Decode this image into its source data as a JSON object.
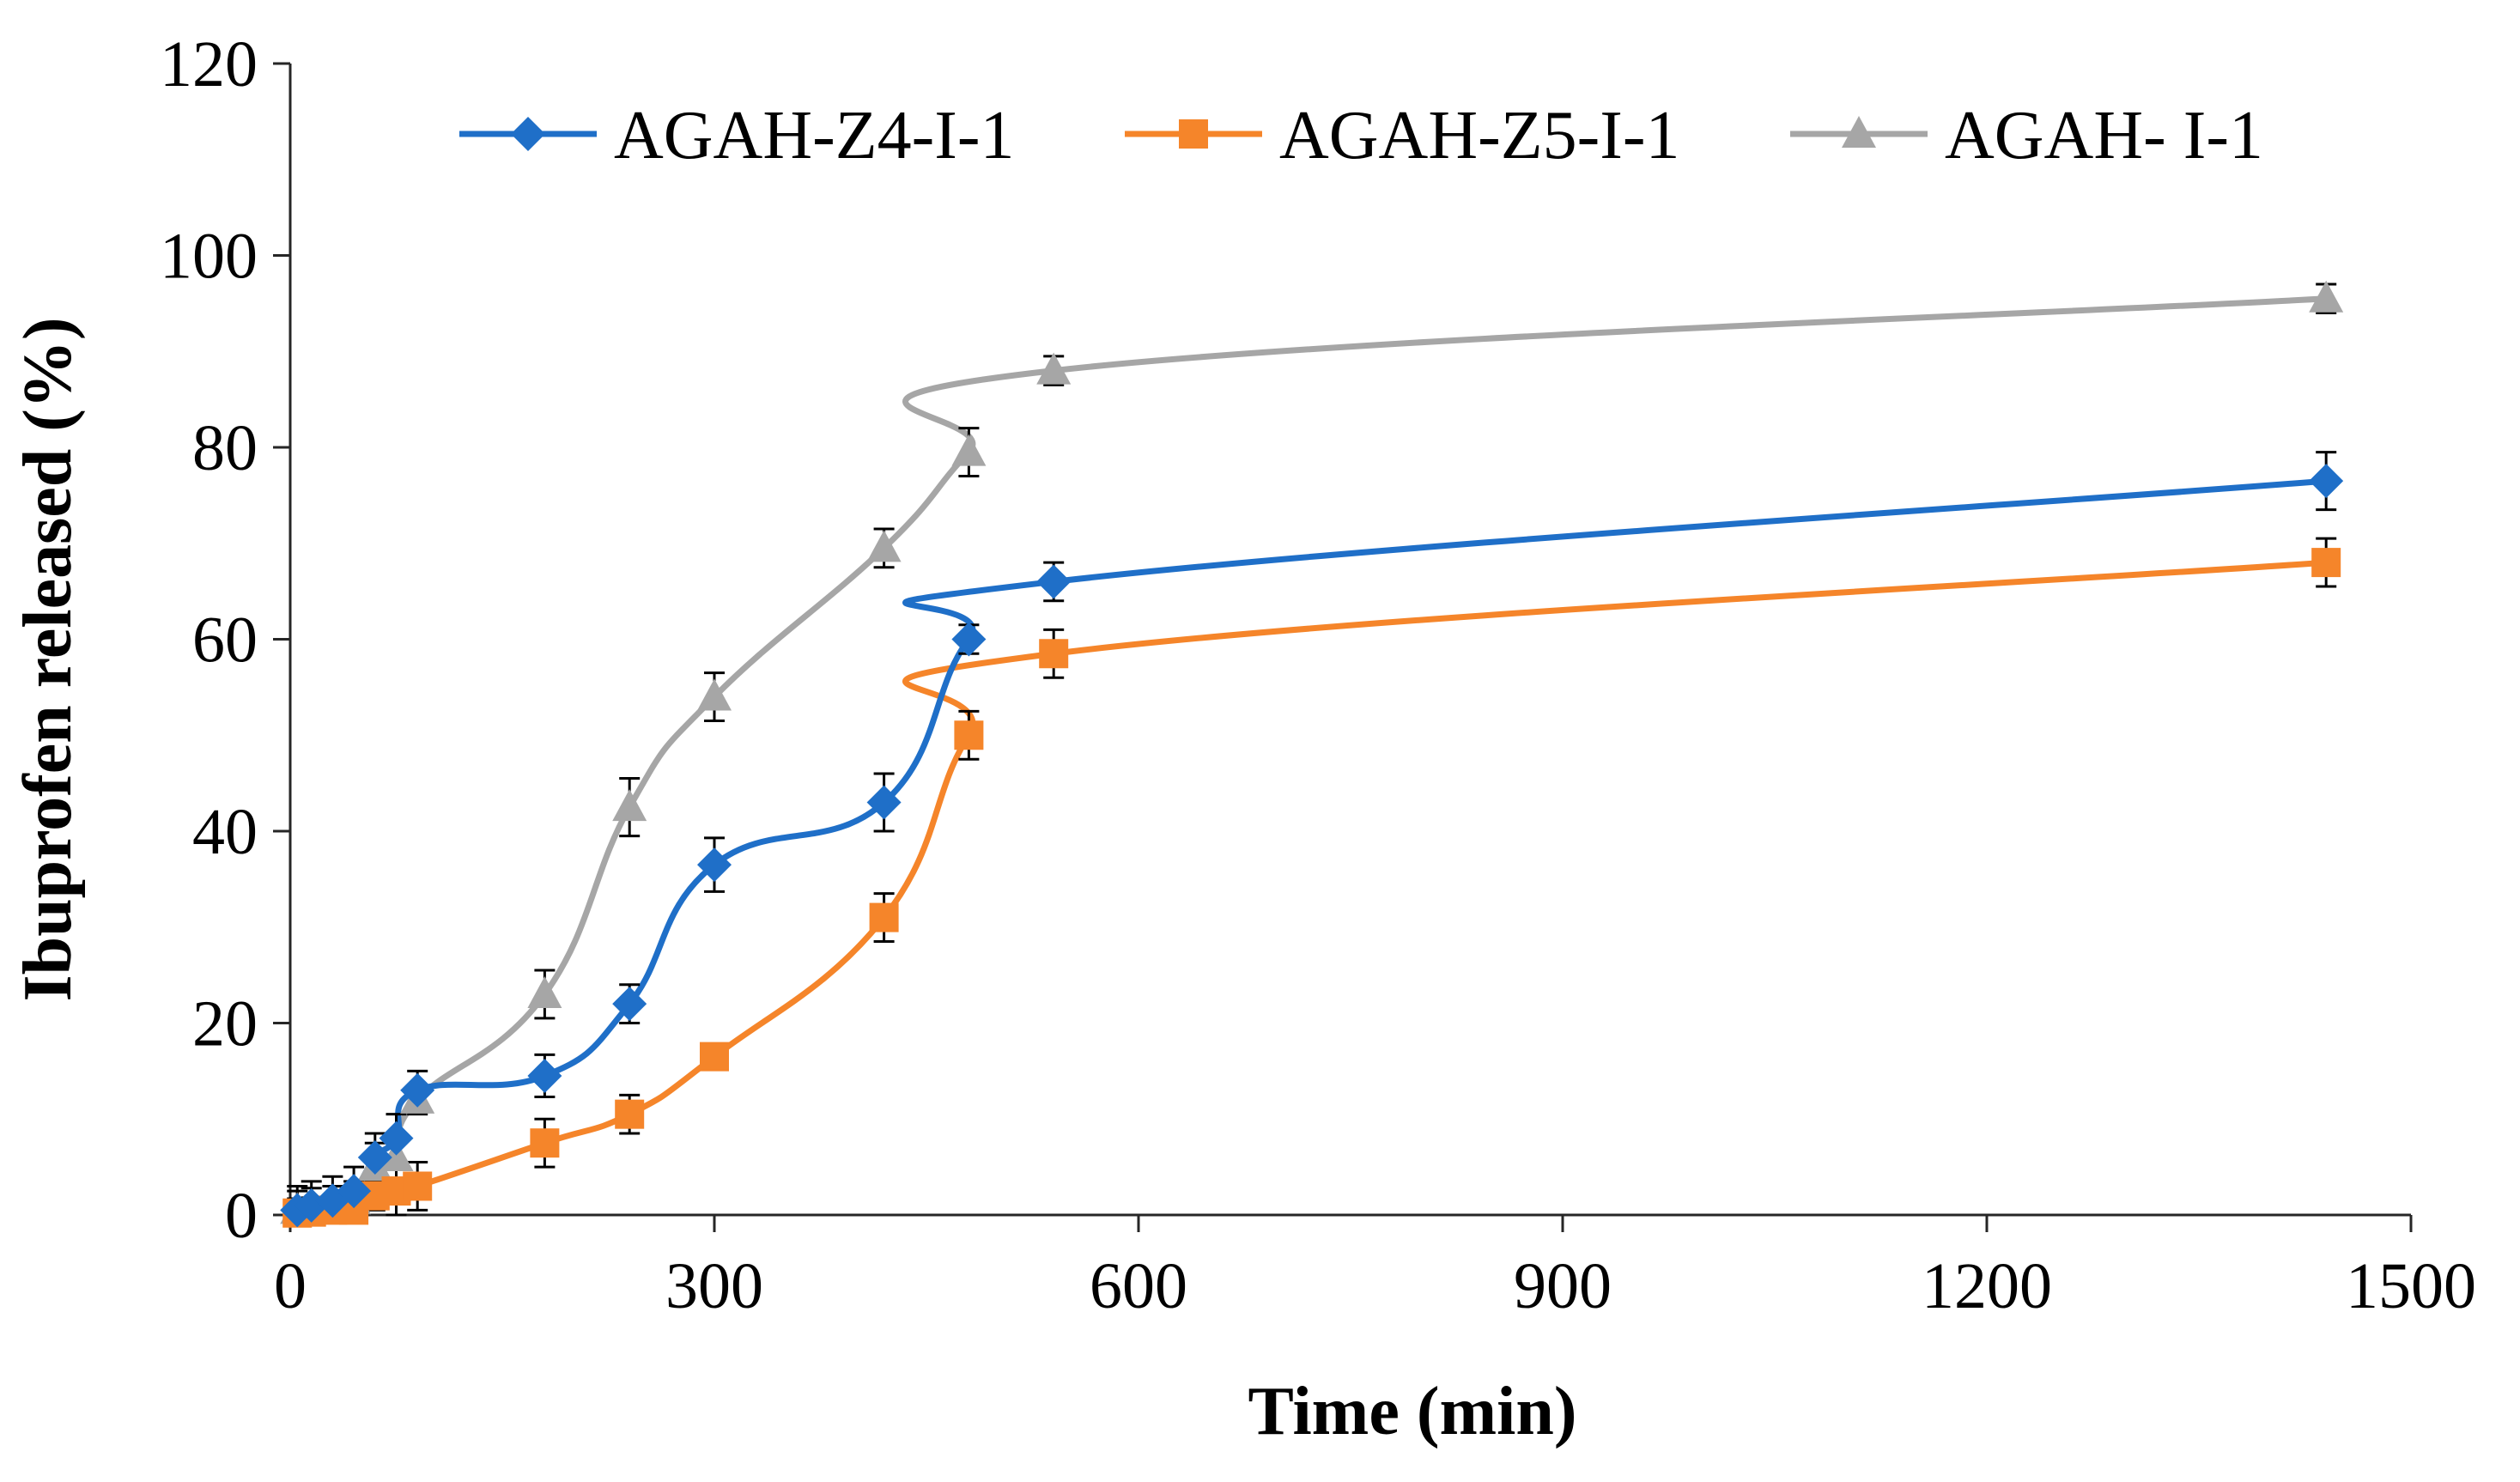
{
  "chart_data": {
    "type": "line",
    "title": "",
    "xlabel": "Time (min)",
    "ylabel": "Ibuprofen released (%)",
    "xlim": [
      0,
      1500
    ],
    "ylim": [
      0,
      120
    ],
    "xticks": [
      0,
      300,
      600,
      900,
      1200,
      1500
    ],
    "yticks": [
      0,
      20,
      40,
      60,
      80,
      100,
      120
    ],
    "xtick_labels": [
      "0",
      "300",
      "600",
      "900",
      "1200",
      "1500"
    ],
    "ytick_labels": [
      "0",
      "20",
      "40",
      "60",
      "80",
      "100",
      "120"
    ],
    "grid": false,
    "legend_position": "top",
    "smooth": true,
    "series": [
      {
        "name": "AGAH-Z4-I-1",
        "color": "#1F6FC8",
        "marker": "diamond",
        "x": [
          5,
          15,
          30,
          45,
          60,
          75,
          90,
          180,
          240,
          300,
          420,
          480,
          540,
          1440
        ],
        "y": [
          0.5,
          1.0,
          1.5,
          2.5,
          6.0,
          8.0,
          13.0,
          14.5,
          22.0,
          36.5,
          43.0,
          60.0,
          66.0,
          76.5
        ],
        "error": [
          2.5,
          2.5,
          2.5,
          2.5,
          2.5,
          2.5,
          2.0,
          2.2,
          2.0,
          2.8,
          3.0,
          1.5,
          2.0,
          3.0
        ]
      },
      {
        "name": "AGAH-Z5-I-1",
        "color": "#F5852A",
        "marker": "square",
        "x": [
          5,
          15,
          30,
          45,
          60,
          75,
          90,
          180,
          240,
          300,
          420,
          480,
          540,
          1440
        ],
        "y": [
          0.2,
          0.3,
          0.5,
          0.5,
          2.0,
          2.5,
          3.0,
          7.5,
          10.5,
          16.5,
          31.0,
          50.0,
          58.5,
          68.0
        ],
        "error": [
          1.5,
          1.5,
          1.5,
          1.5,
          1.5,
          2.5,
          2.5,
          2.5,
          2.0,
          1.0,
          2.5,
          2.5,
          2.5,
          2.5
        ]
      },
      {
        "name": "AGAH- I-1",
        "color": "#A6A6A6",
        "marker": "triangle",
        "x": [
          5,
          15,
          30,
          45,
          60,
          75,
          90,
          180,
          240,
          300,
          420,
          480,
          540,
          1440
        ],
        "y": [
          0.5,
          0.8,
          1.0,
          1.5,
          5.0,
          6.0,
          12.0,
          23.0,
          42.5,
          54.0,
          69.5,
          79.5,
          88.0,
          95.5
        ],
        "error": [
          2.0,
          2.0,
          2.0,
          2.0,
          2.5,
          2.5,
          1.5,
          2.5,
          3.0,
          2.5,
          2.0,
          2.5,
          1.5,
          1.5
        ]
      }
    ]
  }
}
